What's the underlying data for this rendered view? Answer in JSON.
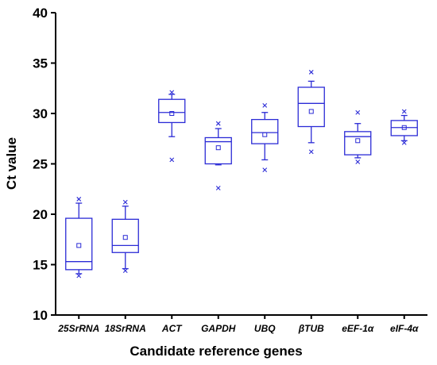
{
  "chart_data": {
    "type": "box",
    "title": "",
    "xlabel": "Candidate reference genes",
    "ylabel": "Ct value",
    "ylim": [
      10,
      40
    ],
    "yticks": [
      10,
      15,
      20,
      25,
      30,
      35,
      40
    ],
    "grid": false,
    "legend": "none",
    "box_color": "#2b2bd6",
    "categories": [
      "25SrRNA",
      "18SrRNA",
      "ACT",
      "GAPDH",
      "UBQ",
      "βTUB",
      "eEF-1α",
      "eIF-4α"
    ],
    "boxes": [
      {
        "whisker_low": 14.1,
        "q1": 14.5,
        "median": 15.3,
        "q3": 19.6,
        "whisker_high": 21.1,
        "mean": 16.9,
        "outliers": [
          13.9,
          21.5
        ]
      },
      {
        "whisker_low": 14.6,
        "q1": 16.2,
        "median": 16.9,
        "q3": 19.5,
        "whisker_high": 20.8,
        "mean": 17.7,
        "outliers": [
          14.4,
          21.2
        ]
      },
      {
        "whisker_low": 27.7,
        "q1": 29.1,
        "median": 30.1,
        "q3": 31.4,
        "whisker_high": 31.9,
        "mean": 30.0,
        "outliers": [
          25.4,
          32.1
        ]
      },
      {
        "whisker_low": 24.9,
        "q1": 25.0,
        "median": 27.2,
        "q3": 27.6,
        "whisker_high": 28.5,
        "mean": 26.6,
        "outliers": [
          22.6,
          29.0
        ]
      },
      {
        "whisker_low": 25.4,
        "q1": 27.0,
        "median": 28.1,
        "q3": 29.4,
        "whisker_high": 30.1,
        "mean": 27.9,
        "outliers": [
          24.4,
          30.8
        ]
      },
      {
        "whisker_low": 27.1,
        "q1": 28.7,
        "median": 31.0,
        "q3": 32.6,
        "whisker_high": 33.2,
        "mean": 30.2,
        "outliers": [
          26.2,
          34.1
        ]
      },
      {
        "whisker_low": 25.6,
        "q1": 25.9,
        "median": 27.7,
        "q3": 28.2,
        "whisker_high": 29.0,
        "mean": 27.3,
        "outliers": [
          25.2,
          30.1
        ]
      },
      {
        "whisker_low": 27.3,
        "q1": 27.8,
        "median": 28.6,
        "q3": 29.3,
        "whisker_high": 29.8,
        "mean": 28.6,
        "outliers": [
          27.1,
          30.2
        ]
      }
    ]
  }
}
